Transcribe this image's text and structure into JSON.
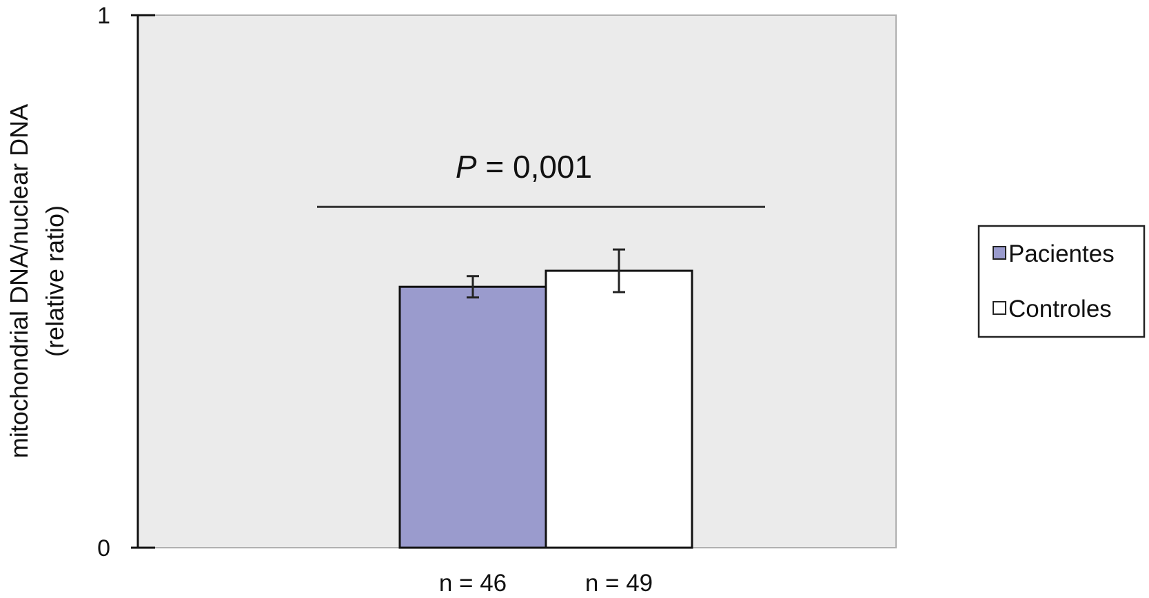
{
  "chart_data": {
    "type": "bar",
    "title": "",
    "ylabel": "mitochondrial DNA/nuclear DNA",
    "ylabel_line2": "(relative ratio)",
    "xlabel": "",
    "ylim": [
      0,
      1
    ],
    "yticks": [
      {
        "value": 0,
        "label": "0"
      },
      {
        "value": 1,
        "label": "1"
      }
    ],
    "grid": false,
    "legend_position": "right",
    "series": [
      {
        "name": "Pacientes",
        "value": 0.49,
        "error": 0.02,
        "n_label": "n = 46",
        "color": "#9a9bcd"
      },
      {
        "name": "Controles",
        "value": 0.52,
        "error": 0.04,
        "n_label": "n = 49",
        "color": "#ffffff"
      }
    ],
    "annotation": {
      "p_symbol": "P",
      "p_rest": " = 0,001",
      "line_y": 0.64
    },
    "plot_background": "#ebebeb"
  }
}
